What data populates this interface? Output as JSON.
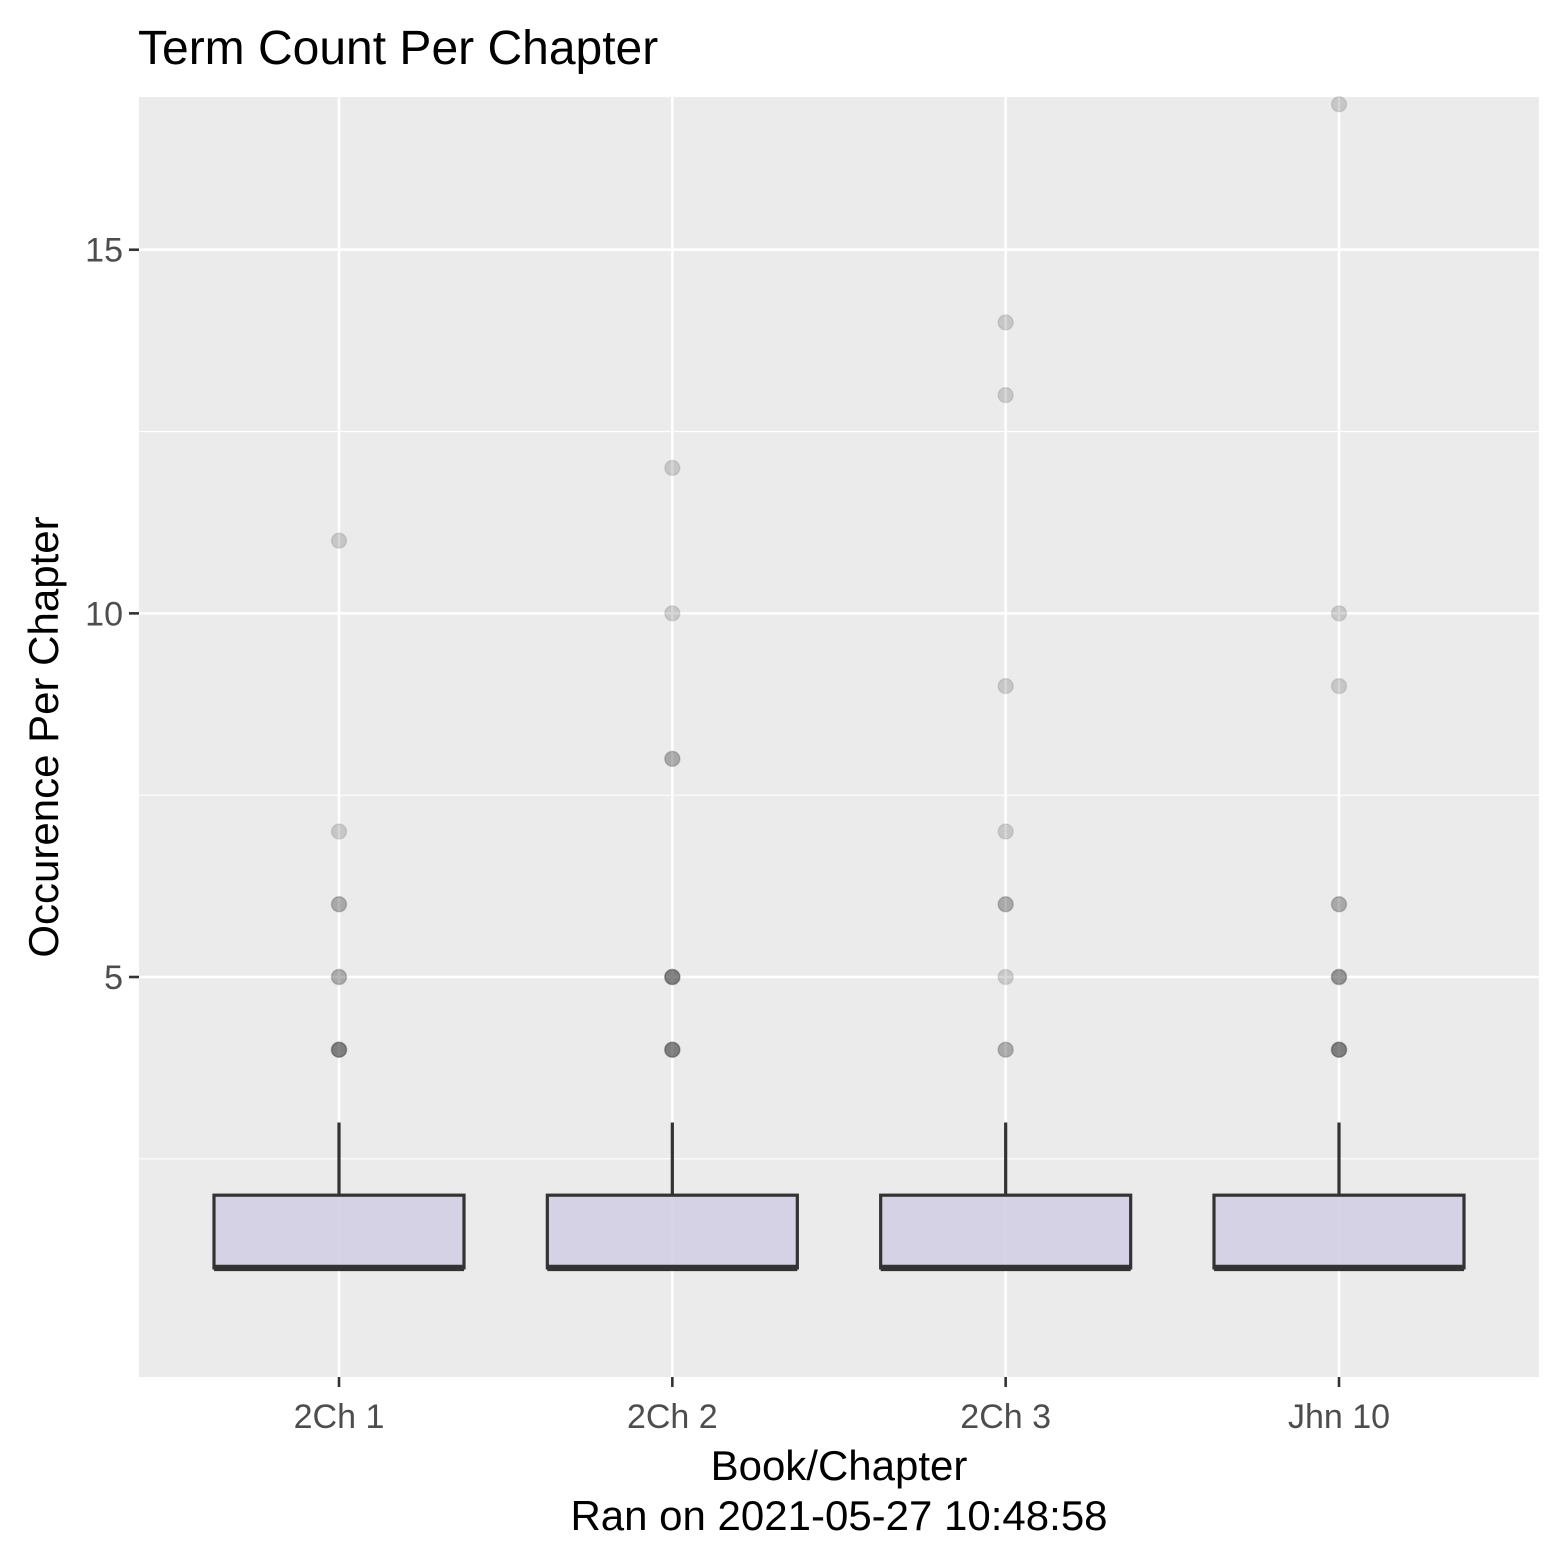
{
  "chart_data": {
    "type": "boxplot",
    "title": "Term Count Per Chapter",
    "xlabel": "Book/Chapter",
    "xlabel_sub": "Ran on 2021-05-27 10:48:58",
    "ylabel": "Occurence Per Chapter",
    "categories": [
      "2Ch 1",
      "2Ch 2",
      "2Ch 3",
      "Jhn 10"
    ],
    "ylim": [
      -0.5,
      17.1
    ],
    "yticks": [
      5,
      10,
      15
    ],
    "ytick_labels": [
      "5",
      "10",
      "15"
    ],
    "grid": true,
    "boxes": [
      {
        "category": "2Ch 1",
        "q1": 1,
        "median": 1,
        "q3": 2,
        "whisker_low": 1,
        "whisker_high": 3
      },
      {
        "category": "2Ch 2",
        "q1": 1,
        "median": 1,
        "q3": 2,
        "whisker_low": 1,
        "whisker_high": 3
      },
      {
        "category": "2Ch 3",
        "q1": 1,
        "median": 1,
        "q3": 2,
        "whisker_low": 1,
        "whisker_high": 3
      },
      {
        "category": "Jhn 10",
        "q1": 1,
        "median": 1,
        "q3": 2,
        "whisker_low": 1,
        "whisker_high": 3
      }
    ],
    "outliers": [
      {
        "category": "2Ch 1",
        "values": [
          4,
          4,
          4,
          4,
          5,
          5,
          6,
          6,
          7,
          11
        ]
      },
      {
        "category": "2Ch 2",
        "values": [
          4,
          4,
          4,
          4,
          5,
          5,
          5,
          5,
          8,
          8,
          10,
          12
        ]
      },
      {
        "category": "2Ch 3",
        "values": [
          4,
          4,
          5,
          6,
          6,
          7,
          9,
          13,
          14
        ]
      },
      {
        "category": "Jhn 10",
        "values": [
          4,
          4,
          4,
          4,
          5,
          5,
          5,
          6,
          6,
          9,
          10,
          17
        ]
      }
    ],
    "colors": {
      "panel_background": "#ebebeb",
      "grid_major": "#ffffff",
      "box_fill": "#d4cfe5",
      "box_line": "#333333",
      "outlier_point": "#333333"
    }
  }
}
